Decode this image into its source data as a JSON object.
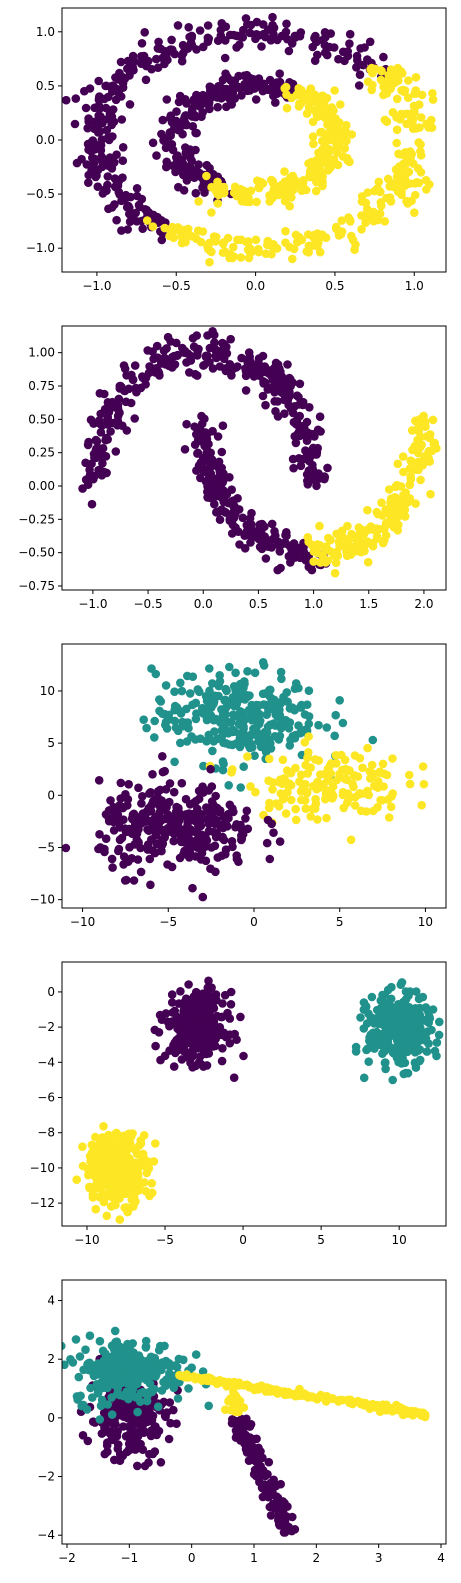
{
  "colors": {
    "purple": "#440154",
    "teal": "#21918c",
    "yellow": "#fde725"
  },
  "chart_data": [
    {
      "type": "scatter",
      "title": "",
      "xlabel": "",
      "ylabel": "",
      "xlim": [
        -1.22,
        1.2
      ],
      "ylim": [
        -1.22,
        1.22
      ],
      "xticks": [
        -1.0,
        -0.5,
        0.0,
        0.5,
        1.0
      ],
      "yticks": [
        -1.0,
        -0.5,
        0.0,
        0.5,
        1.0
      ],
      "xtick_labels": [
        "−1.0",
        "−0.5",
        "0.0",
        "0.5",
        "1.0"
      ],
      "ytick_labels": [
        "−1.0",
        "−0.5",
        "0.0",
        "0.5",
        "1.0"
      ],
      "grid": false,
      "series": [
        {
          "color": "purple",
          "shape": "ring",
          "cx": 0,
          "cy": 0,
          "r": 1.0,
          "theta": [
            42,
            235
          ],
          "noise": 0.07,
          "n": 300
        },
        {
          "color": "yellow",
          "shape": "ring",
          "cx": 0,
          "cy": 0,
          "r": 1.0,
          "theta": [
            235,
            402
          ],
          "noise": 0.07,
          "n": 260
        },
        {
          "color": "purple",
          "shape": "ring",
          "cx": 0,
          "cy": 0,
          "r": 0.5,
          "theta": [
            60,
            240
          ],
          "noise": 0.06,
          "n": 230
        },
        {
          "color": "yellow",
          "shape": "ring",
          "cx": 0,
          "cy": 0,
          "r": 0.5,
          "theta": [
            240,
            420
          ],
          "noise": 0.06,
          "n": 230
        }
      ]
    },
    {
      "type": "scatter",
      "title": "",
      "xlabel": "",
      "ylabel": "",
      "xlim": [
        -1.28,
        2.2
      ],
      "ylim": [
        -0.78,
        1.2
      ],
      "xticks": [
        -1.0,
        -0.5,
        0.0,
        0.5,
        1.0,
        1.5,
        2.0
      ],
      "yticks": [
        -0.75,
        -0.5,
        -0.25,
        0.0,
        0.25,
        0.5,
        0.75,
        1.0
      ],
      "xtick_labels": [
        "−1.0",
        "−0.5",
        "0.0",
        "0.5",
        "1.0",
        "1.5",
        "2.0"
      ],
      "ytick_labels": [
        "−0.75",
        "−0.50",
        "−0.25",
        "0.00",
        "0.25",
        "0.50",
        "0.75",
        "1.00"
      ],
      "grid": false,
      "series": [
        {
          "color": "purple",
          "shape": "arc",
          "cx": 0,
          "cy": 0,
          "r": 1.0,
          "theta": [
            0,
            180
          ],
          "noise": 0.07,
          "n": 330
        },
        {
          "color": "purple",
          "shape": "arc",
          "cx": 1,
          "cy": 0.5,
          "r": 1.0,
          "theta": [
            180,
            272
          ],
          "noise": 0.07,
          "n": 200
        },
        {
          "color": "yellow",
          "shape": "arc",
          "cx": 1,
          "cy": 0.5,
          "r": 1.0,
          "theta": [
            272,
            360
          ],
          "noise": 0.07,
          "n": 190
        }
      ]
    },
    {
      "type": "scatter",
      "title": "",
      "xlabel": "",
      "ylabel": "",
      "xlim": [
        -11.2,
        11.2
      ],
      "ylim": [
        -10.8,
        14.5
      ],
      "xticks": [
        -10,
        -5,
        0,
        5,
        10
      ],
      "yticks": [
        -10,
        -5,
        0,
        5,
        10
      ],
      "xtick_labels": [
        "−10",
        "−5",
        "0",
        "5",
        "10"
      ],
      "ytick_labels": [
        "−10",
        "−5",
        "0",
        "5",
        "10"
      ],
      "grid": false,
      "series": [
        {
          "color": "teal",
          "shape": "blob",
          "cx": -1.0,
          "cy": 7.5,
          "sx": 2.4,
          "sy": 2.2,
          "n": 300
        },
        {
          "color": "yellow",
          "shape": "blob",
          "cx": 4.2,
          "cy": 1.2,
          "sx": 2.3,
          "sy": 1.8,
          "n": 150
        },
        {
          "color": "purple",
          "shape": "blob",
          "cx": -4.4,
          "cy": -3.2,
          "sx": 2.3,
          "sy": 2.1,
          "n": 320
        }
      ]
    },
    {
      "type": "scatter",
      "title": "",
      "xlabel": "",
      "ylabel": "",
      "xlim": [
        -11.6,
        13.0
      ],
      "ylim": [
        -13.3,
        1.7
      ],
      "xticks": [
        -10,
        -5,
        0,
        5,
        10
      ],
      "yticks": [
        -12,
        -10,
        -8,
        -6,
        -4,
        -2,
        0
      ],
      "xtick_labels": [
        "−10",
        "−5",
        "0",
        "5",
        "10"
      ],
      "ytick_labels": [
        "−12",
        "−10",
        "−8",
        "−6",
        "−4",
        "−2",
        "0"
      ],
      "grid": false,
      "series": [
        {
          "color": "purple",
          "shape": "blob",
          "cx": -3.0,
          "cy": -2.0,
          "sx": 0.95,
          "sy": 0.95,
          "n": 330
        },
        {
          "color": "teal",
          "shape": "blob",
          "cx": 10.0,
          "cy": -2.2,
          "sx": 1.0,
          "sy": 1.0,
          "n": 330
        },
        {
          "color": "yellow",
          "shape": "blob",
          "cx": -8.1,
          "cy": -10.0,
          "sx": 1.0,
          "sy": 1.0,
          "n": 330
        }
      ]
    },
    {
      "type": "scatter",
      "title": "",
      "xlabel": "",
      "ylabel": "",
      "xlim": [
        -2.08,
        4.08
      ],
      "ylim": [
        -4.3,
        4.7
      ],
      "xticks": [
        -2,
        -1,
        0,
        1,
        2,
        3,
        4
      ],
      "yticks": [
        -4,
        -2,
        0,
        2,
        4
      ],
      "xtick_labels": [
        "−2",
        "−1",
        "0",
        "1",
        "2",
        "3",
        "4"
      ],
      "ytick_labels": [
        "−4",
        "−2",
        "0",
        "2",
        "4"
      ],
      "grid": false,
      "series": [
        {
          "color": "purple",
          "shape": "blob",
          "cx": -1.0,
          "cy": 0.0,
          "sx": 0.32,
          "sy": 0.7,
          "n": 200
        },
        {
          "color": "purple",
          "shape": "line",
          "x0": 0.75,
          "y0": 0.0,
          "x1": 1.55,
          "y1": -3.95,
          "noise": 0.07,
          "n": 170
        },
        {
          "color": "teal",
          "shape": "blob",
          "cx": -1.0,
          "cy": 1.6,
          "sx": 0.45,
          "sy": 0.55,
          "n": 260
        },
        {
          "color": "yellow",
          "shape": "line",
          "x0": -0.2,
          "y0": 1.45,
          "x1": 3.8,
          "y1": 0.1,
          "noise": 0.05,
          "n": 180
        },
        {
          "color": "yellow",
          "shape": "blob",
          "cx": 0.7,
          "cy": 0.5,
          "sx": 0.08,
          "sy": 0.25,
          "n": 20
        }
      ]
    }
  ]
}
